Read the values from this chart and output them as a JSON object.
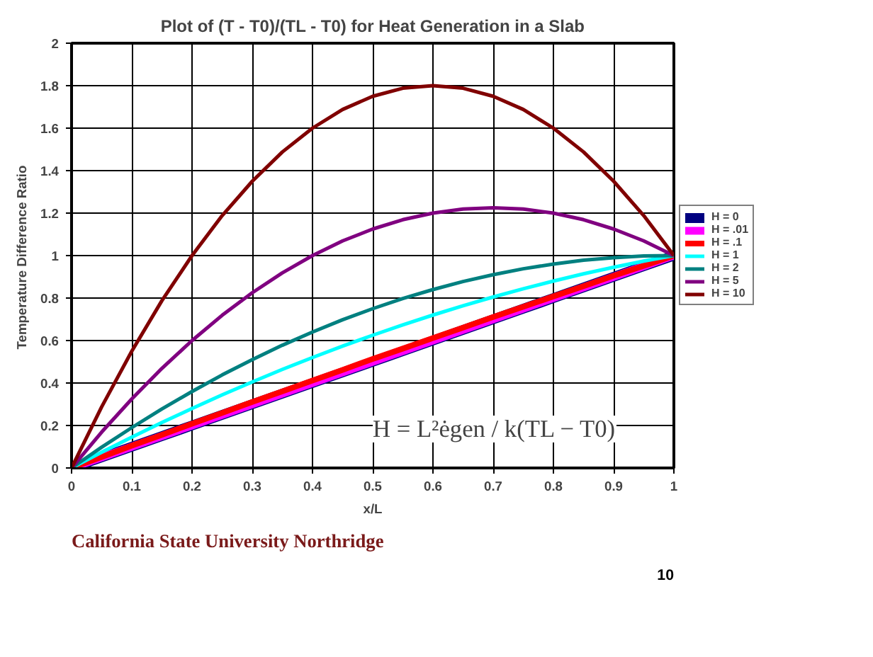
{
  "chart_data": {
    "type": "line",
    "title": "Plot of (T - T0)/(TL - T0) for Heat Generation in a Slab",
    "xlabel": "x/L",
    "ylabel": "Temperature Difference  Ratio",
    "x": [
      0,
      0.05,
      0.1,
      0.15,
      0.2,
      0.25,
      0.3,
      0.35,
      0.4,
      0.45,
      0.5,
      0.55,
      0.6,
      0.65,
      0.7,
      0.75,
      0.8,
      0.85,
      0.9,
      0.95,
      1
    ],
    "series": [
      {
        "name": "H = 0",
        "color": "#000080",
        "values": [
          0,
          0.05,
          0.1,
          0.15,
          0.2,
          0.25,
          0.3,
          0.35,
          0.4,
          0.45,
          0.5,
          0.55,
          0.6,
          0.65,
          0.7,
          0.75,
          0.8,
          0.85,
          0.9,
          0.95,
          1
        ]
      },
      {
        "name": "H = .01",
        "color": "#ff00ff",
        "values": [
          0,
          0.05,
          0.1,
          0.15,
          0.2,
          0.25,
          0.3,
          0.35,
          0.4,
          0.45,
          0.5,
          0.55,
          0.6,
          0.65,
          0.7,
          0.75,
          0.8,
          0.85,
          0.9,
          0.95,
          1
        ]
      },
      {
        "name": "H = .1",
        "color": "#ff0000",
        "values": [
          0,
          0.052,
          0.105,
          0.156,
          0.208,
          0.259,
          0.311,
          0.361,
          0.412,
          0.462,
          0.513,
          0.562,
          0.612,
          0.661,
          0.711,
          0.759,
          0.808,
          0.856,
          0.905,
          0.952,
          1
        ]
      },
      {
        "name": "H = 1",
        "color": "#00ffff",
        "values": [
          0,
          0.074,
          0.145,
          0.214,
          0.28,
          0.344,
          0.405,
          0.464,
          0.52,
          0.574,
          0.625,
          0.674,
          0.72,
          0.764,
          0.805,
          0.844,
          0.88,
          0.914,
          0.945,
          0.974,
          1
        ]
      },
      {
        "name": "H = 2",
        "color": "#008080",
        "values": [
          0,
          0.098,
          0.19,
          0.278,
          0.36,
          0.438,
          0.51,
          0.578,
          0.64,
          0.698,
          0.75,
          0.798,
          0.84,
          0.878,
          0.91,
          0.938,
          0.96,
          0.978,
          0.99,
          0.998,
          1
        ]
      },
      {
        "name": "H = 5",
        "color": "#800080",
        "values": [
          0,
          0.169,
          0.325,
          0.469,
          0.6,
          0.719,
          0.825,
          0.919,
          1.0,
          1.069,
          1.125,
          1.169,
          1.2,
          1.219,
          1.225,
          1.219,
          1.2,
          1.169,
          1.125,
          1.069,
          1
        ]
      },
      {
        "name": "H = 10",
        "color": "#800000",
        "values": [
          0,
          0.288,
          0.55,
          0.788,
          1.0,
          1.188,
          1.35,
          1.488,
          1.6,
          1.688,
          1.75,
          1.788,
          1.8,
          1.788,
          1.75,
          1.688,
          1.6,
          1.488,
          1.35,
          1.188,
          1
        ]
      }
    ],
    "xlim": [
      0,
      1
    ],
    "ylim": [
      0,
      2
    ],
    "xticks": [
      0,
      0.1,
      0.2,
      0.3,
      0.4,
      0.5,
      0.6,
      0.7,
      0.8,
      0.9,
      1
    ],
    "yticks": [
      0,
      0.2,
      0.4,
      0.6,
      0.8,
      1,
      1.2,
      1.4,
      1.6,
      1.8,
      2
    ],
    "grid": true,
    "legend": "right",
    "marker": "none",
    "line_style": "solid",
    "annotations": [
      "H = L²ėgen / k(TL − T0)",
      "California State University Northridge",
      "10"
    ]
  }
}
